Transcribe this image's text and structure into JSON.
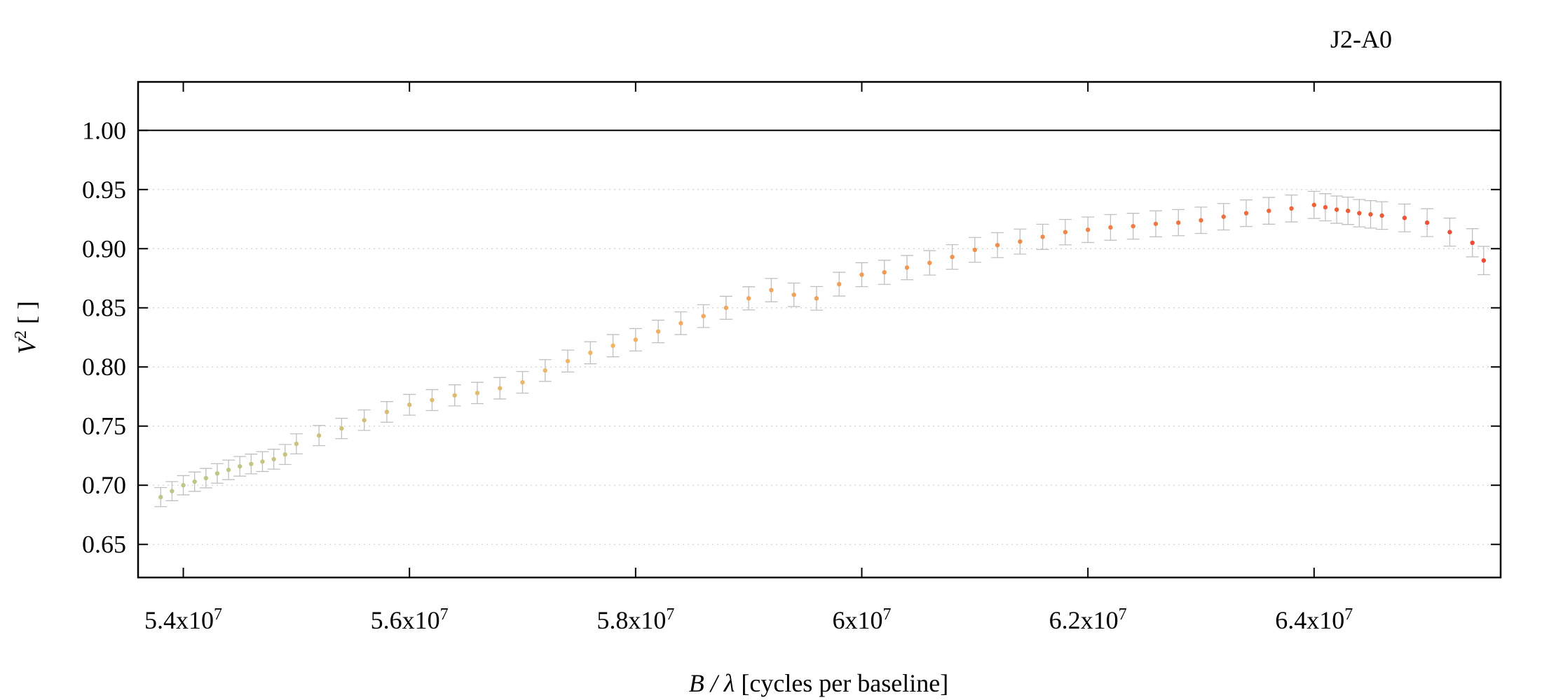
{
  "chart_data": {
    "type": "scatter",
    "title": "J2-A0",
    "xlabel": {
      "var": "B / λ",
      "rest": " [cycles per baseline]"
    },
    "ylabel": {
      "var": "V",
      "sup": "2",
      "rest": " [ ]"
    },
    "xlim": [
      53600000,
      65650000
    ],
    "ylim": [
      0.622,
      1.041
    ],
    "x_ticks": [
      {
        "value": 54000000,
        "mant": "5.4x10",
        "exp": "7"
      },
      {
        "value": 56000000,
        "mant": "5.6x10",
        "exp": "7"
      },
      {
        "value": 58000000,
        "mant": "5.8x10",
        "exp": "7"
      },
      {
        "value": 60000000,
        "mant": "6x10",
        "exp": "7"
      },
      {
        "value": 62000000,
        "mant": "6.2x10",
        "exp": "7"
      },
      {
        "value": 64000000,
        "mant": "6.4x10",
        "exp": "7"
      }
    ],
    "y_ticks": [
      {
        "value": 0.65,
        "label": "0.65"
      },
      {
        "value": 0.7,
        "label": "0.70"
      },
      {
        "value": 0.75,
        "label": "0.75"
      },
      {
        "value": 0.8,
        "label": "0.80"
      },
      {
        "value": 0.85,
        "label": "0.85"
      },
      {
        "value": 0.9,
        "label": "0.90"
      },
      {
        "value": 0.95,
        "label": "0.95"
      },
      {
        "value": 1.0,
        "label": "1.00"
      }
    ],
    "reference_line_y": 1.0,
    "grid": "horizontal dotted",
    "error_bars": true,
    "color_scale": [
      "#b8c98a",
      "#f2b466",
      "#f08a48",
      "#ec4a34"
    ],
    "error_bar_color": "#c0c0c0",
    "series": [
      {
        "x": [
          53800000,
          53900000,
          54000000,
          54100000,
          54200000,
          54300000,
          54400000,
          54500000,
          54600000,
          54700000,
          54800000,
          54900000,
          55000000,
          55200000,
          55400000,
          55600000,
          55800000,
          56000000,
          56200000,
          56400000,
          56600000,
          56800000,
          57000000,
          57200000,
          57400000,
          57600000,
          57800000,
          58000000,
          58200000,
          58400000,
          58600000,
          58800000,
          59000000,
          59200000,
          59400000,
          59600000,
          59800000,
          60000000,
          60200000,
          60400000,
          60600000,
          60800000,
          61000000,
          61200000,
          61400000,
          61600000,
          61800000,
          62000000,
          62200000,
          62400000,
          62600000,
          62800000,
          63000000,
          63200000,
          63400000,
          63600000,
          63800000,
          64000000,
          64100000,
          64200000,
          64300000,
          64400000,
          64500000,
          64600000,
          64800000,
          65000000,
          65200000,
          65400000,
          65500000
        ],
        "y": [
          0.69,
          0.695,
          0.7,
          0.703,
          0.706,
          0.71,
          0.713,
          0.716,
          0.718,
          0.72,
          0.722,
          0.726,
          0.735,
          0.742,
          0.748,
          0.755,
          0.762,
          0.768,
          0.772,
          0.776,
          0.778,
          0.782,
          0.787,
          0.797,
          0.805,
          0.812,
          0.818,
          0.823,
          0.83,
          0.837,
          0.843,
          0.85,
          0.858,
          0.865,
          0.861,
          0.858,
          0.87,
          0.878,
          0.88,
          0.884,
          0.888,
          0.893,
          0.899,
          0.903,
          0.906,
          0.91,
          0.914,
          0.916,
          0.918,
          0.919,
          0.921,
          0.922,
          0.924,
          0.927,
          0.93,
          0.932,
          0.934,
          0.937,
          0.935,
          0.933,
          0.932,
          0.93,
          0.929,
          0.928,
          0.926,
          0.922,
          0.914,
          0.905,
          0.89
        ]
      }
    ]
  }
}
